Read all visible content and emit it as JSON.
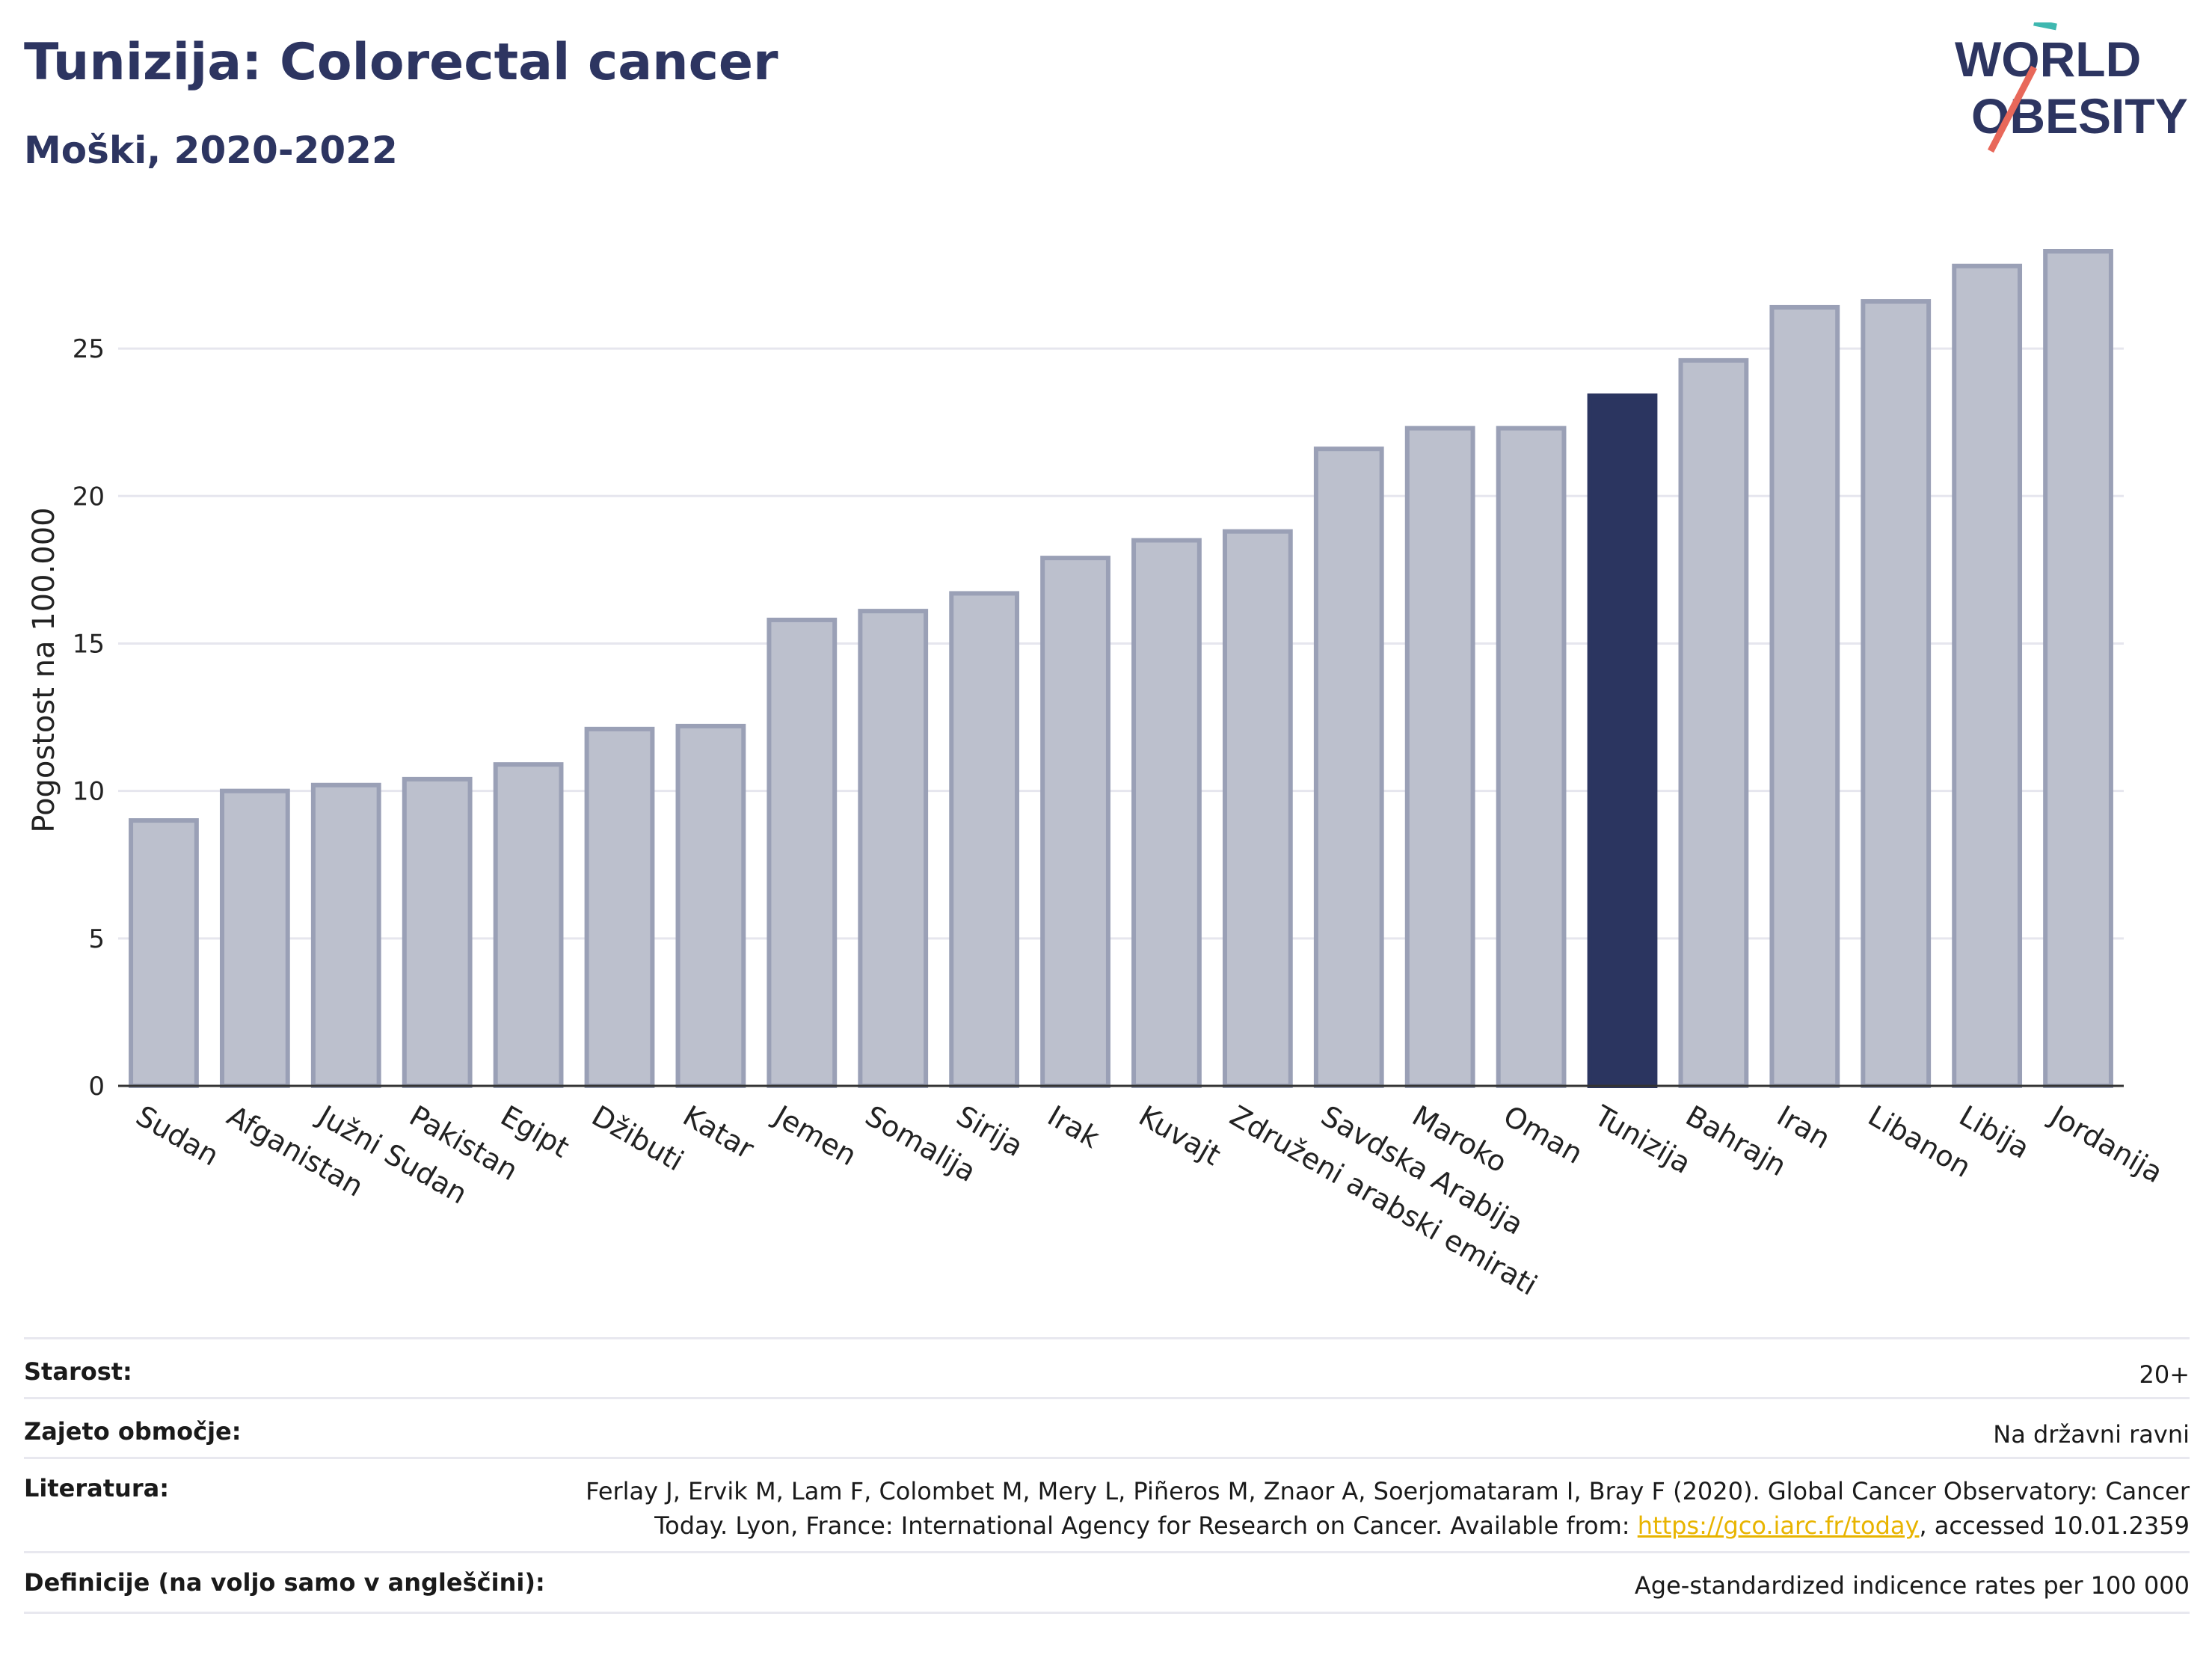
{
  "header": {
    "title": "Tunizija: Colorectal cancer",
    "subtitle": "Moški, 2020-2022"
  },
  "logo": {
    "line1": "WORLD",
    "line2": "OBESITY"
  },
  "colors": {
    "bar": "#bcc0cd",
    "bar_stroke": "#9aa0b6",
    "highlight": "#2b3560",
    "grid": "#e6e6ee",
    "axis": "#333333"
  },
  "chart_data": {
    "type": "bar",
    "ylabel": "Pogostost na 100.000",
    "ylim": [
      0,
      28.5
    ],
    "yticks": [
      0,
      5,
      10,
      15,
      20,
      25
    ],
    "categories": [
      "Sudan",
      "Afganistan",
      "Južni Sudan",
      "Pakistan",
      "Egipt",
      "Džibuti",
      "Katar",
      "Jemen",
      "Somalija",
      "Sirija",
      "Irak",
      "Kuvajt",
      "Združeni arabski emirati",
      "Savdska Arabija",
      "Maroko",
      "Oman",
      "Tunizija",
      "Bahrajn",
      "Iran",
      "Libanon",
      "Libija",
      "Jordanija"
    ],
    "values": [
      9.0,
      10.0,
      10.2,
      10.4,
      10.9,
      12.1,
      12.2,
      15.8,
      16.1,
      16.7,
      17.9,
      18.5,
      18.8,
      21.6,
      22.3,
      22.3,
      23.4,
      24.6,
      26.4,
      26.6,
      27.8,
      28.3
    ],
    "highlight": "Tunizija",
    "grid": true
  },
  "footer": {
    "rows": [
      {
        "label": "Starost:",
        "value": "20+"
      },
      {
        "label": "Zajeto območje:",
        "value": "Na državni ravni"
      },
      {
        "label": "Literatura:",
        "value_line1": "Ferlay J, Ervik M, Lam F, Colombet M, Mery L, Piñeros M, Znaor A, Soerjomataram I, Bray F (2020). Global Cancer Observatory: Cancer",
        "value_line2_pre": "Today. Lyon, France: International Agency for Research on Cancer. Available from: ",
        "link": "https://gco.iarc.fr/today",
        "value_line2_post": ", accessed 10.01.2359"
      },
      {
        "label": "Definicije (na voljo samo v angleščini):",
        "value": "Age-standardized indicence rates per 100 000"
      }
    ]
  }
}
